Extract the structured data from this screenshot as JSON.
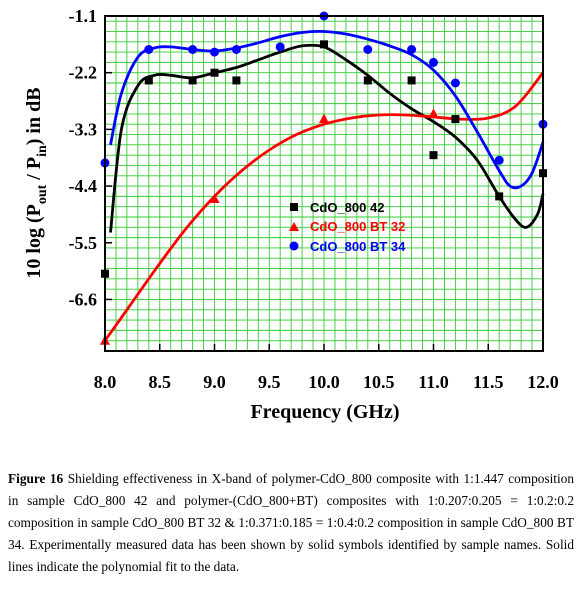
{
  "chart_data": {
    "type": "scatter",
    "xlabel": "Frequency (GHz)",
    "ylabel": "10 log (P",
    "ylabel_sub1": "out",
    "ylabel_mid": " / P",
    "ylabel_sub2": "in",
    "ylabel_end": ") in dB",
    "xlim": [
      8.0,
      12.0
    ],
    "ylim": [
      -7.6,
      -1.1
    ],
    "x_ticks": [
      "8.0",
      "8.5",
      "9.0",
      "9.5",
      "10.0",
      "10.5",
      "11.0",
      "11.5",
      "12.0"
    ],
    "y_ticks": [
      "-1.1",
      "-2.2",
      "-3.3",
      "-4.4",
      "-5.5",
      "-6.6"
    ],
    "grid": true,
    "legend_position": "center",
    "series": [
      {
        "name": "CdO_800 42",
        "color": "#000000",
        "marker": "square",
        "x": [
          8.0,
          8.4,
          8.8,
          9.0,
          9.2,
          10.0,
          10.4,
          10.8,
          11.0,
          11.2,
          11.6,
          12.0
        ],
        "y": [
          -6.1,
          -2.35,
          -2.35,
          -2.2,
          -2.35,
          -1.65,
          -2.35,
          -2.35,
          -3.8,
          -3.1,
          -4.6,
          -4.15
        ],
        "fit_x": [
          8.05,
          8.15,
          8.3,
          8.45,
          8.6,
          8.8,
          9.0,
          9.2,
          9.4,
          9.6,
          9.8,
          10.0,
          10.2,
          10.4,
          10.6,
          10.8,
          11.0,
          11.2,
          11.4,
          11.6,
          11.75,
          11.85,
          11.95,
          12.0
        ],
        "fit_y": [
          -5.3,
          -3.3,
          -2.45,
          -2.25,
          -2.25,
          -2.3,
          -2.2,
          -2.1,
          -1.95,
          -1.8,
          -1.68,
          -1.7,
          -1.95,
          -2.25,
          -2.6,
          -2.9,
          -3.15,
          -3.45,
          -3.9,
          -4.6,
          -5.05,
          -5.2,
          -4.95,
          -4.55
        ]
      },
      {
        "name": "CdO_800 BT 32",
        "color": "#ff0000",
        "marker": "triangle",
        "x": [
          8.0,
          9.0,
          10.0,
          11.0
        ],
        "y": [
          -7.4,
          -4.65,
          -3.1,
          -3.0
        ],
        "fit_x": [
          8.0,
          8.25,
          8.5,
          8.75,
          9.0,
          9.25,
          9.5,
          9.75,
          10.0,
          10.25,
          10.5,
          10.75,
          11.0,
          11.25,
          11.5,
          11.75,
          12.0
        ],
        "fit_y": [
          -7.4,
          -6.65,
          -5.9,
          -5.2,
          -4.6,
          -4.1,
          -3.7,
          -3.4,
          -3.2,
          -3.08,
          -3.02,
          -3.02,
          -3.06,
          -3.1,
          -3.08,
          -2.85,
          -2.2
        ]
      },
      {
        "name": "CdO_800 BT 34",
        "color": "#0000ff",
        "marker": "circle",
        "x": [
          8.0,
          8.4,
          8.8,
          9.0,
          9.2,
          9.6,
          10.0,
          10.4,
          10.8,
          11.0,
          11.2,
          11.6,
          12.0
        ],
        "y": [
          -3.95,
          -1.75,
          -1.75,
          -1.8,
          -1.75,
          -1.7,
          -1.1,
          -1.75,
          -1.75,
          -2.0,
          -2.4,
          -3.9,
          -3.2
        ],
        "fit_x": [
          8.05,
          8.15,
          8.3,
          8.45,
          8.6,
          8.8,
          9.0,
          9.2,
          9.4,
          9.6,
          9.8,
          10.0,
          10.2,
          10.4,
          10.6,
          10.8,
          11.0,
          11.2,
          11.4,
          11.6,
          11.7,
          11.8,
          11.9,
          12.0
        ],
        "fit_y": [
          -3.6,
          -2.6,
          -1.9,
          -1.72,
          -1.7,
          -1.75,
          -1.78,
          -1.72,
          -1.62,
          -1.5,
          -1.42,
          -1.4,
          -1.45,
          -1.55,
          -1.68,
          -1.85,
          -2.15,
          -2.65,
          -3.35,
          -4.1,
          -4.4,
          -4.4,
          -4.15,
          -3.55
        ]
      }
    ]
  },
  "caption": {
    "label": "Figure 16",
    "text": " Shielding effectiveness in X-band of polymer-CdO_800 composite with 1:1.447 composition in sample CdO_800 42 and polymer-(CdO_800+BT) composites with 1:0.207:0.205 = 1:0.2:0.2 composition in sample CdO_800 BT 32 & 1:0.371:0.185 = 1:0.4:0.2 composition in sample CdO_800 BT 34. Experimentally measured data has been shown by solid symbols identified by sample names. Solid lines indicate the polynomial fit to the data."
  }
}
